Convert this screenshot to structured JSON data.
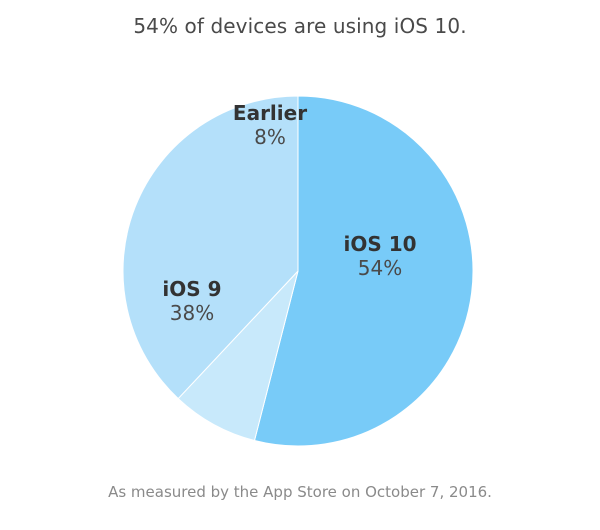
{
  "title": "54% of devices are using iOS 10.",
  "footnote": "As measured by the App Store on October 7, 2016.",
  "chart_data": {
    "type": "pie",
    "title": "54% of devices are using iOS 10.",
    "slices": [
      {
        "name": "iOS 10",
        "value": 54,
        "label": "54%",
        "color": "#78cbf8"
      },
      {
        "name": "Earlier",
        "value": 8,
        "label": "8%",
        "color": "#c8e9fb"
      },
      {
        "name": "iOS 9",
        "value": 38,
        "label": "38%",
        "color": "#b4e0fa"
      }
    ],
    "start_angle": "12 o'clock",
    "direction": "clockwise",
    "legend": "none"
  }
}
